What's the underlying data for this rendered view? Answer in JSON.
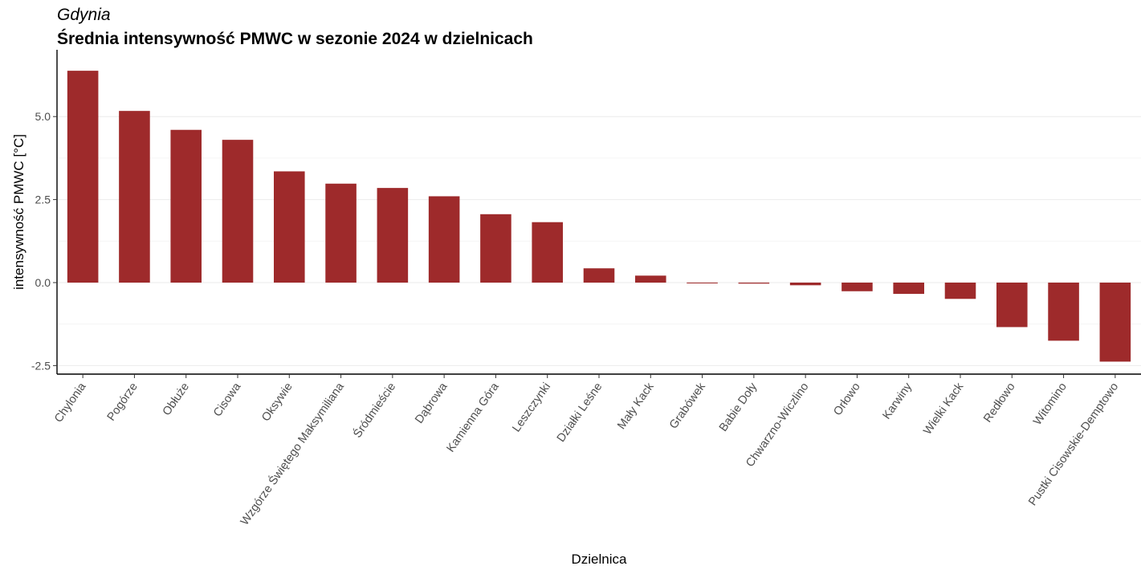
{
  "header": {
    "subtitle": "Gdynia",
    "title": "Średnia intensywność PMWC w sezonie 2024 w dzielnicach"
  },
  "chart_data": {
    "type": "bar",
    "title": "Średnia intensywność PMWC w sezonie 2024 w dzielnicach",
    "subtitle": "Gdynia",
    "xlabel": "Dzielnica",
    "ylabel": "intensywność PMWC [°C]",
    "categories": [
      "Chylonia",
      "Pogórze",
      "Obłuże",
      "Cisowa",
      "Oksywie",
      "Wzgórze Świętego Maksymiliana",
      "Śródmieście",
      "Dąbrowa",
      "Kamienna Góra",
      "Leszczynki",
      "Działki Leśne",
      "Mały Kack",
      "Grabówek",
      "Babie Doły",
      "Chwarzno-Wiczlino",
      "Orłowo",
      "Karwiny",
      "Wielki Kack",
      "Redłowo",
      "Witomino",
      "Pustki Cisowskie-Demptowo"
    ],
    "values": [
      6.38,
      5.17,
      4.6,
      4.3,
      3.35,
      2.98,
      2.85,
      2.6,
      2.06,
      1.82,
      0.43,
      0.21,
      -0.02,
      -0.03,
      -0.08,
      -0.26,
      -0.34,
      -0.49,
      -1.34,
      -1.75,
      -2.38
    ],
    "yticks": [
      -2.5,
      0.0,
      2.5,
      5.0
    ],
    "ytick_labels": [
      "-2.5",
      "0.0",
      "2.5",
      "5.0"
    ],
    "ylim": [
      -2.78,
      6.9
    ],
    "bar_color": "#9E2A2B",
    "grid": "horizontal",
    "legend": "none"
  }
}
